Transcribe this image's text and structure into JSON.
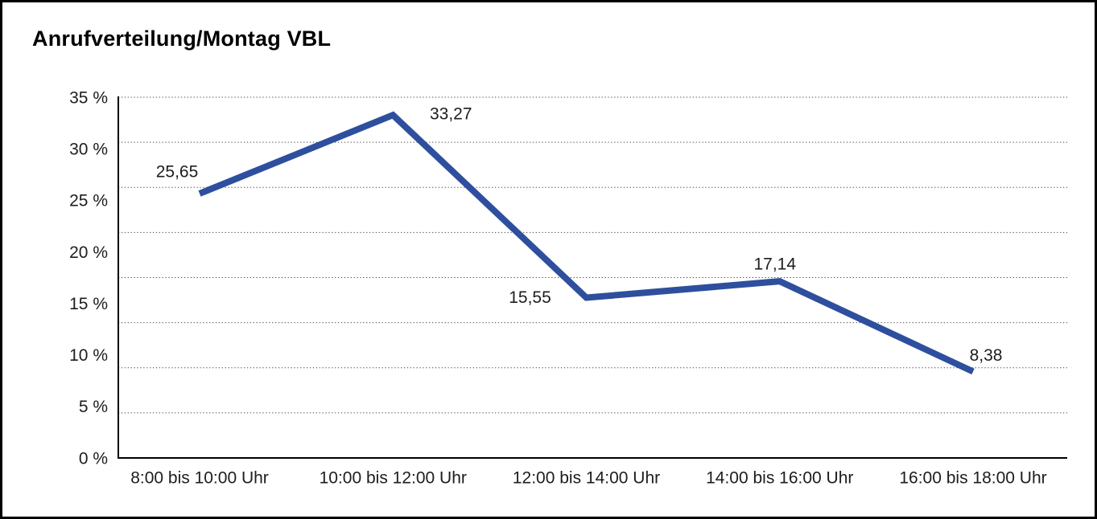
{
  "page": {
    "background": "#ffffff",
    "border_color": "#000000"
  },
  "chart_data": {
    "type": "line",
    "title": "Anrufverteilung/Montag VBL",
    "categories": [
      "8:00 bis 10:00 Uhr",
      "10:00 bis 12:00 Uhr",
      "12:00 bis 14:00 Uhr",
      "14:00 bis 16:00 Uhr",
      "16:00 bis 18:00 Uhr"
    ],
    "values": [
      25.65,
      33.27,
      15.55,
      17.14,
      8.38
    ],
    "value_labels": [
      "25,65",
      "33,27",
      "15,55",
      "17,14",
      "8,38"
    ],
    "y_tick_labels": [
      "35 %",
      "30 %",
      "25 %",
      "20 %",
      "15 %",
      "10 %",
      "5 %",
      "0 %"
    ],
    "ylim": [
      0,
      35
    ],
    "xlabel": "",
    "ylabel": "",
    "grid": "horizontal-dotted",
    "legend": "none",
    "line_color": "#2e4f9e",
    "axis_color": "#000000",
    "gridline_color": "#4a4a4a",
    "text_color": "#1d1d1d"
  }
}
